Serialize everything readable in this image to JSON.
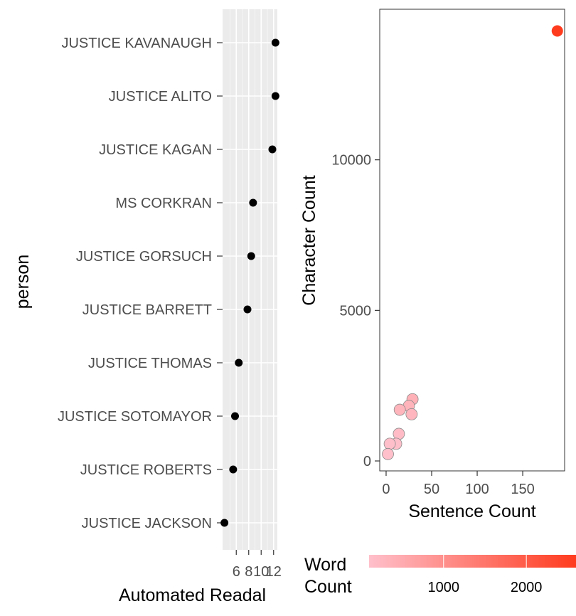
{
  "chart_data": [
    {
      "type": "scatter",
      "subtype": "dot-plot",
      "xlabel": "Automated Readal",
      "ylabel": "person",
      "xlim": [
        3.8,
        12.6
      ],
      "xticks": [
        6,
        8,
        10,
        12
      ],
      "xtick_labels": [
        "6",
        "8",
        "10",
        "12"
      ],
      "grid": "on",
      "background": "#ebebeb",
      "categories": [
        "JUSTICE KAVANAUGH",
        "JUSTICE ALITO",
        "JUSTICE KAGAN",
        "MS CORKRAN",
        "JUSTICE GORSUCH",
        "JUSTICE BARRETT",
        "JUSTICE THOMAS",
        "JUSTICE SOTOMAYOR",
        "JUSTICE ROBERTS",
        "JUSTICE JACKSON"
      ],
      "values": [
        12.3,
        12.3,
        11.8,
        8.7,
        8.4,
        7.8,
        6.4,
        5.8,
        5.5,
        4.1
      ],
      "point_color": "#000000"
    },
    {
      "type": "scatter",
      "xlabel": "Sentence Count",
      "ylabel": "Character Count",
      "xlim": [
        -7,
        196
      ],
      "ylim": [
        -330,
        15000
      ],
      "xticks": [
        0,
        50,
        100,
        150
      ],
      "xtick_labels": [
        "0",
        "50",
        "100",
        "150"
      ],
      "yticks": [
        0,
        5000,
        10000
      ],
      "ytick_labels": [
        "0",
        "5000",
        "10000"
      ],
      "grid": "off",
      "color_scale": {
        "low": "#ffc0cb",
        "high": "#ff3b1e",
        "range": [
          100,
          2600
        ]
      },
      "points": [
        {
          "x": 188,
          "y": 14280,
          "w": 2600
        },
        {
          "x": 29,
          "y": 2050,
          "w": 390
        },
        {
          "x": 25,
          "y": 1830,
          "w": 340
        },
        {
          "x": 15,
          "y": 1700,
          "w": 310
        },
        {
          "x": 28,
          "y": 1550,
          "w": 290
        },
        {
          "x": 14,
          "y": 900,
          "w": 170
        },
        {
          "x": 11,
          "y": 570,
          "w": 110
        },
        {
          "x": 4,
          "y": 570,
          "w": 110
        },
        {
          "x": 2,
          "y": 230,
          "w": 50
        }
      ],
      "legend": {
        "title_line1": "Word",
        "title_line2": "Count",
        "ticks": [
          1000,
          2000
        ],
        "tick_labels": [
          "1000",
          "2000"
        ],
        "position": "bottom"
      }
    }
  ]
}
